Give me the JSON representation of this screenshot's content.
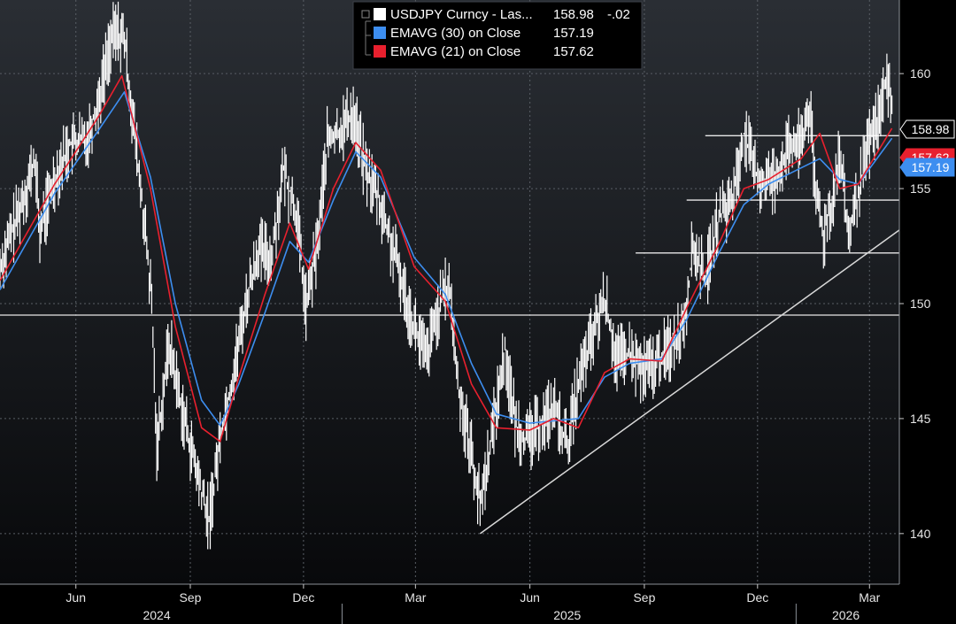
{
  "chart_data": {
    "type": "line",
    "title": "",
    "xlabel": "",
    "ylabel": "",
    "x_range": [
      "2024-04-01",
      "2026-03-25"
    ],
    "ylim": [
      137.8,
      163.2
    ],
    "y_ticks": [
      140,
      145,
      150,
      155,
      160
    ],
    "x_ticks": [
      {
        "label": "Jun",
        "date": "2024-06-01"
      },
      {
        "label": "Sep",
        "date": "2024-09-01"
      },
      {
        "label": "Dec",
        "date": "2024-12-01"
      },
      {
        "label": "Mar",
        "date": "2025-03-01"
      },
      {
        "label": "Jun",
        "date": "2025-06-01"
      },
      {
        "label": "Sep",
        "date": "2025-09-01"
      },
      {
        "label": "Dec",
        "date": "2025-12-01"
      },
      {
        "label": "Mar",
        "date": "2026-03-01"
      }
    ],
    "year_labels": [
      {
        "label": "2024",
        "center": "2024-08-05"
      },
      {
        "label": "2025",
        "center": "2025-07-01"
      },
      {
        "label": "2026",
        "center": "2026-02-10"
      }
    ],
    "year_separators": [
      "2025-01-01",
      "2026-01-01"
    ],
    "grid": true,
    "legend_position": "top-center",
    "legend": [
      {
        "label": "USDJPY Curncy - Las...",
        "value": "158.98",
        "change": "-.02",
        "color": "#ffffff"
      },
      {
        "label": "EMAVG (30)  on Close",
        "value": "157.19",
        "color": "#3d8ef0"
      },
      {
        "label": "EMAVG (21)  on Close",
        "value": "157.62",
        "color": "#e8202e"
      }
    ],
    "last_value_tags": [
      {
        "text": "158.98",
        "value": 158.98,
        "bg": "#000000",
        "fg": "#ffffff",
        "border": "#ffffff"
      },
      {
        "text": "157.62",
        "value": 157.62,
        "bg": "#e8202e",
        "fg": "#ffffff",
        "border": "#e8202e"
      },
      {
        "text": "157.19",
        "value": 157.19,
        "bg": "#3d8ef0",
        "fg": "#ffffff",
        "border": "#3d8ef0"
      }
    ],
    "price_series": {
      "name": "USDJPY Curncy",
      "color": "#ffffff",
      "points": [
        [
          "2024-04-01",
          151.6
        ],
        [
          "2024-04-15",
          153.8
        ],
        [
          "2024-04-29",
          156.2
        ],
        [
          "2024-05-03",
          153.1
        ],
        [
          "2024-05-15",
          155.5
        ],
        [
          "2024-05-27",
          156.9
        ],
        [
          "2024-06-10",
          157.2
        ],
        [
          "2024-06-20",
          159.0
        ],
        [
          "2024-06-28",
          161.2
        ],
        [
          "2024-07-03",
          161.8
        ],
        [
          "2024-07-10",
          161.5
        ],
        [
          "2024-07-15",
          158.9
        ],
        [
          "2024-07-25",
          154.0
        ],
        [
          "2024-08-01",
          150.0
        ],
        [
          "2024-08-05",
          143.8
        ],
        [
          "2024-08-15",
          148.3
        ],
        [
          "2024-08-25",
          145.5
        ],
        [
          "2024-09-05",
          142.9
        ],
        [
          "2024-09-16",
          140.5
        ],
        [
          "2024-09-26",
          144.6
        ],
        [
          "2024-10-04",
          146.5
        ],
        [
          "2024-10-15",
          149.8
        ],
        [
          "2024-10-25",
          152.3
        ],
        [
          "2024-11-05",
          152.0
        ],
        [
          "2024-11-15",
          155.8
        ],
        [
          "2024-11-25",
          154.0
        ],
        [
          "2024-12-03",
          149.8
        ],
        [
          "2024-12-12",
          152.5
        ],
        [
          "2024-12-20",
          157.0
        ],
        [
          "2024-12-30",
          157.5
        ],
        [
          "2025-01-10",
          158.3
        ],
        [
          "2025-01-20",
          155.8
        ],
        [
          "2025-01-30",
          154.6
        ],
        [
          "2025-02-10",
          152.5
        ],
        [
          "2025-02-20",
          150.5
        ],
        [
          "2025-02-28",
          149.0
        ],
        [
          "2025-03-10",
          147.6
        ],
        [
          "2025-03-18",
          149.5
        ],
        [
          "2025-03-28",
          150.9
        ],
        [
          "2025-04-04",
          146.5
        ],
        [
          "2025-04-15",
          143.5
        ],
        [
          "2025-04-22",
          141.2
        ],
        [
          "2025-05-02",
          144.5
        ],
        [
          "2025-05-12",
          148.0
        ],
        [
          "2025-05-20",
          144.8
        ],
        [
          "2025-05-30",
          144.0
        ],
        [
          "2025-06-10",
          144.8
        ],
        [
          "2025-06-20",
          145.5
        ],
        [
          "2025-07-01",
          143.8
        ],
        [
          "2025-07-10",
          146.5
        ],
        [
          "2025-07-20",
          148.3
        ],
        [
          "2025-07-31",
          150.2
        ],
        [
          "2025-08-10",
          147.5
        ],
        [
          "2025-08-20",
          147.8
        ],
        [
          "2025-08-31",
          147.0
        ],
        [
          "2025-09-10",
          147.4
        ],
        [
          "2025-09-20",
          148.0
        ],
        [
          "2025-09-30",
          148.8
        ],
        [
          "2025-10-05",
          150.0
        ],
        [
          "2025-10-10",
          152.5
        ],
        [
          "2025-10-20",
          151.0
        ],
        [
          "2025-10-31",
          153.8
        ],
        [
          "2025-11-05",
          154.0
        ],
        [
          "2025-11-12",
          154.8
        ],
        [
          "2025-11-20",
          157.4
        ],
        [
          "2025-11-28",
          155.8
        ],
        [
          "2025-12-05",
          155.2
        ],
        [
          "2025-12-15",
          155.5
        ],
        [
          "2025-12-25",
          156.6
        ],
        [
          "2026-01-05",
          157.0
        ],
        [
          "2026-01-12",
          158.6
        ],
        [
          "2026-01-16",
          155.0
        ],
        [
          "2026-01-23",
          153.0
        ],
        [
          "2026-01-30",
          154.5
        ],
        [
          "2026-02-05",
          156.5
        ],
        [
          "2026-02-12",
          152.8
        ],
        [
          "2026-02-18",
          154.2
        ],
        [
          "2026-02-24",
          155.8
        ],
        [
          "2026-03-02",
          157.2
        ],
        [
          "2026-03-09",
          158.2
        ],
        [
          "2026-03-14",
          159.6
        ],
        [
          "2026-03-19",
          158.98
        ]
      ]
    },
    "ema30": {
      "name": "EMAVG (30)",
      "color": "#3d8ef0",
      "points": [
        [
          "2024-04-01",
          150.6
        ],
        [
          "2024-05-15",
          154.8
        ],
        [
          "2024-06-20",
          157.6
        ],
        [
          "2024-07-10",
          159.2
        ],
        [
          "2024-07-31",
          155.5
        ],
        [
          "2024-08-20",
          150.0
        ],
        [
          "2024-09-10",
          145.8
        ],
        [
          "2024-09-25",
          144.7
        ],
        [
          "2024-10-10",
          146.5
        ],
        [
          "2024-10-31",
          149.6
        ],
        [
          "2024-11-20",
          152.7
        ],
        [
          "2024-12-05",
          151.8
        ],
        [
          "2024-12-25",
          154.5
        ],
        [
          "2025-01-12",
          156.6
        ],
        [
          "2025-02-01",
          155.5
        ],
        [
          "2025-02-28",
          152.0
        ],
        [
          "2025-03-25",
          150.4
        ],
        [
          "2025-04-15",
          147.4
        ],
        [
          "2025-05-05",
          145.2
        ],
        [
          "2025-06-01",
          144.8
        ],
        [
          "2025-06-20",
          144.9
        ],
        [
          "2025-07-10",
          145.0
        ],
        [
          "2025-07-31",
          146.8
        ],
        [
          "2025-08-20",
          147.4
        ],
        [
          "2025-09-15",
          147.6
        ],
        [
          "2025-10-05",
          149.3
        ],
        [
          "2025-10-31",
          152.2
        ],
        [
          "2025-11-20",
          154.3
        ],
        [
          "2025-12-10",
          155.2
        ],
        [
          "2026-01-05",
          155.9
        ],
        [
          "2026-01-20",
          156.3
        ],
        [
          "2026-02-05",
          155.4
        ],
        [
          "2026-02-20",
          155.2
        ],
        [
          "2026-03-19",
          157.19
        ]
      ]
    },
    "ema21": {
      "name": "EMAVG (21)",
      "color": "#e8202e",
      "points": [
        [
          "2024-04-01",
          151.0
        ],
        [
          "2024-05-15",
          155.2
        ],
        [
          "2024-06-20",
          158.2
        ],
        [
          "2024-07-08",
          159.9
        ],
        [
          "2024-07-31",
          155.0
        ],
        [
          "2024-08-20",
          149.0
        ],
        [
          "2024-09-10",
          144.6
        ],
        [
          "2024-09-25",
          144.0
        ],
        [
          "2024-10-10",
          146.8
        ],
        [
          "2024-10-31",
          150.4
        ],
        [
          "2024-11-20",
          153.5
        ],
        [
          "2024-12-05",
          151.5
        ],
        [
          "2024-12-25",
          155.0
        ],
        [
          "2025-01-12",
          157.0
        ],
        [
          "2025-02-01",
          155.8
        ],
        [
          "2025-02-28",
          151.6
        ],
        [
          "2025-03-25",
          150.1
        ],
        [
          "2025-04-15",
          146.5
        ],
        [
          "2025-05-05",
          144.6
        ],
        [
          "2025-06-01",
          144.5
        ],
        [
          "2025-06-20",
          145.0
        ],
        [
          "2025-07-10",
          144.6
        ],
        [
          "2025-07-31",
          147.0
        ],
        [
          "2025-08-20",
          147.6
        ],
        [
          "2025-09-15",
          147.5
        ],
        [
          "2025-10-05",
          149.8
        ],
        [
          "2025-10-31",
          152.6
        ],
        [
          "2025-11-20",
          155.0
        ],
        [
          "2025-12-10",
          155.4
        ],
        [
          "2026-01-05",
          156.3
        ],
        [
          "2026-01-20",
          157.4
        ],
        [
          "2026-02-05",
          155.0
        ],
        [
          "2026-02-20",
          155.2
        ],
        [
          "2026-03-19",
          157.62
        ]
      ]
    },
    "horizontal_lines": [
      {
        "value": 149.5,
        "from": "2024-04-01",
        "to": "2026-03-25"
      },
      {
        "value": 152.2,
        "from": "2025-08-25",
        "to": "2026-03-25"
      },
      {
        "value": 154.5,
        "from": "2025-10-05",
        "to": "2026-03-25"
      },
      {
        "value": 157.3,
        "from": "2025-10-20",
        "to": "2026-03-25"
      }
    ],
    "trendline": {
      "from": [
        "2025-04-22",
        140.0
      ],
      "to": [
        "2026-03-25",
        153.2
      ]
    }
  }
}
